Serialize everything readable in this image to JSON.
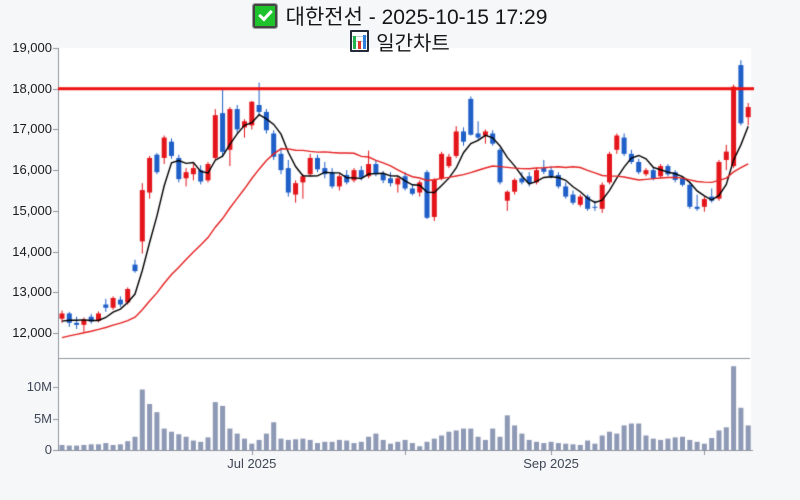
{
  "title": {
    "line1": "대한전선 - 2025-10-15 17:29",
    "line2": "일간차트"
  },
  "icons": {
    "checkbox": "checkbox-checked-icon",
    "subtitle": "bar-chart-icon"
  },
  "colors": {
    "page_background": "#f6f7f9",
    "plot_background": "#ffffff",
    "axis_line": "#8f959c",
    "candle_up": "#e3151b",
    "candle_down": "#1e5fc8",
    "ma_short": "#000000",
    "ma_long": "#e62222",
    "resistance_line": "#ee1111",
    "volume_bar": "#8e99b5",
    "checkbox_green": "#1ec32c"
  },
  "chart_data": {
    "type": "candlestick",
    "panels": [
      "price",
      "volume"
    ],
    "legend_position": "none",
    "grid": false,
    "price_axis": {
      "tick_labels": [
        "19,000",
        "18,000",
        "17,000",
        "16,000",
        "15,000",
        "14,000",
        "13,000",
        "12,000"
      ],
      "tick_values": [
        19000,
        18000,
        17000,
        16000,
        15000,
        14000,
        13000,
        12000
      ],
      "range_shown": [
        11400,
        19000
      ]
    },
    "volume_axis": {
      "tick_labels": [
        "10M",
        "5M",
        "0"
      ],
      "tick_values": [
        10,
        5,
        0
      ],
      "unit": "millions of shares"
    },
    "x_axis": {
      "ticks": [
        {
          "label": "Jul 2025",
          "candle_index": 26
        },
        {
          "label": "",
          "candle_index": 47
        },
        {
          "label": "Sep 2025",
          "candle_index": 67
        },
        {
          "label": "",
          "candle_index": 88
        }
      ]
    },
    "resistance_line_price": 18000,
    "moving_averages": [
      {
        "period": 5,
        "color": "#000000"
      },
      {
        "period": 20,
        "color": "#e62222"
      }
    ],
    "pre_close_seed": [
      11400,
      11450,
      11500,
      11550,
      11600,
      11650,
      11700,
      11750,
      11800,
      11850,
      11900,
      11950,
      12000,
      12050,
      12100,
      12150,
      12200,
      12280,
      12350
    ],
    "candles_ohlc": [
      [
        12350,
        12550,
        12250,
        12480
      ],
      [
        12480,
        12520,
        12150,
        12250
      ],
      [
        12250,
        12400,
        12100,
        12200
      ],
      [
        12200,
        12380,
        12030,
        12330
      ],
      [
        12400,
        12470,
        12230,
        12280
      ],
      [
        12300,
        12530,
        12260,
        12480
      ],
      [
        12700,
        12840,
        12520,
        12620
      ],
      [
        12620,
        12900,
        12570,
        12860
      ],
      [
        12820,
        12900,
        12640,
        12700
      ],
      [
        12750,
        13120,
        12700,
        13080
      ],
      [
        13680,
        13800,
        13480,
        13520
      ],
      [
        14250,
        15680,
        13950,
        15510
      ],
      [
        15450,
        16350,
        15300,
        16300
      ],
      [
        16380,
        16420,
        15900,
        15950
      ],
      [
        16300,
        16850,
        16150,
        16800
      ],
      [
        16700,
        16780,
        16280,
        16350
      ],
      [
        16300,
        16380,
        15700,
        15780
      ],
      [
        15800,
        16050,
        15600,
        15950
      ],
      [
        15900,
        16150,
        15750,
        16050
      ],
      [
        16000,
        16120,
        15650,
        15720
      ],
      [
        15750,
        16200,
        15700,
        16150
      ],
      [
        16300,
        17500,
        16250,
        17350
      ],
      [
        17400,
        17980,
        16350,
        16450
      ],
      [
        16500,
        17550,
        16100,
        17500
      ],
      [
        17500,
        17600,
        16900,
        17000
      ],
      [
        17050,
        17250,
        16800,
        17200
      ],
      [
        17100,
        17700,
        17000,
        17680
      ],
      [
        17600,
        18150,
        17350,
        17430
      ],
      [
        17430,
        17500,
        16900,
        16980
      ],
      [
        16900,
        16980,
        16250,
        16330
      ],
      [
        16400,
        16550,
        15900,
        16000
      ],
      [
        16050,
        16250,
        15350,
        15450
      ],
      [
        15400,
        15750,
        15200,
        15680
      ],
      [
        15700,
        15900,
        15300,
        15850
      ],
      [
        15900,
        16400,
        15850,
        16300
      ],
      [
        16300,
        16380,
        15950,
        16020
      ],
      [
        16050,
        16200,
        15800,
        15900
      ],
      [
        15950,
        16050,
        15550,
        15600
      ],
      [
        15600,
        15900,
        15500,
        15850
      ],
      [
        15880,
        16000,
        15650,
        15700
      ],
      [
        15750,
        16050,
        15700,
        16000
      ],
      [
        16000,
        16100,
        15750,
        15820
      ],
      [
        15850,
        16480,
        15800,
        16150
      ],
      [
        16150,
        16250,
        15850,
        15900
      ],
      [
        15900,
        15980,
        15680,
        15750
      ],
      [
        15800,
        15950,
        15600,
        15680
      ],
      [
        15650,
        15850,
        15450,
        15800
      ],
      [
        15850,
        15950,
        15500,
        15550
      ],
      [
        15550,
        15650,
        15380,
        15420
      ],
      [
        15450,
        15750,
        15350,
        15700
      ],
      [
        15950,
        16000,
        14800,
        14830
      ],
      [
        14850,
        15800,
        14750,
        15760
      ],
      [
        15800,
        16450,
        15750,
        16400
      ],
      [
        16100,
        16400,
        16050,
        16330
      ],
      [
        16350,
        17080,
        16300,
        16950
      ],
      [
        16950,
        17050,
        16600,
        16700
      ],
      [
        17750,
        17810,
        16850,
        16870
      ],
      [
        16900,
        17200,
        16750,
        16800
      ],
      [
        16850,
        17000,
        16650,
        16950
      ],
      [
        16900,
        16980,
        16600,
        16650
      ],
      [
        16500,
        16550,
        15650,
        15700
      ],
      [
        15250,
        15500,
        15000,
        15470
      ],
      [
        15470,
        15800,
        15400,
        15760
      ],
      [
        15800,
        15950,
        15650,
        15700
      ],
      [
        15850,
        15950,
        15600,
        15680
      ],
      [
        15700,
        16060,
        15650,
        16000
      ],
      [
        16050,
        16250,
        15900,
        15960
      ],
      [
        16000,
        16100,
        15800,
        15850
      ],
      [
        15880,
        15950,
        15550,
        15600
      ],
      [
        15600,
        15700,
        15300,
        15350
      ],
      [
        15400,
        15500,
        15150,
        15200
      ],
      [
        15150,
        15400,
        15100,
        15350
      ],
      [
        15350,
        15400,
        15000,
        15050
      ],
      [
        15100,
        15250,
        15000,
        15080
      ],
      [
        15050,
        15700,
        14950,
        15640
      ],
      [
        15700,
        16450,
        15650,
        16400
      ],
      [
        16500,
        16900,
        16400,
        16850
      ],
      [
        16800,
        16900,
        16350,
        16400
      ],
      [
        16400,
        16500,
        16150,
        16200
      ],
      [
        16200,
        16280,
        15900,
        15950
      ],
      [
        15900,
        16050,
        15850,
        16000
      ],
      [
        16000,
        16080,
        15750,
        15800
      ],
      [
        15850,
        16150,
        15800,
        16100
      ],
      [
        16100,
        16150,
        15850,
        15900
      ],
      [
        15950,
        16000,
        15700,
        15760
      ],
      [
        15800,
        15850,
        15600,
        15640
      ],
      [
        15640,
        15700,
        15050,
        15100
      ],
      [
        15100,
        15400,
        15000,
        15050
      ],
      [
        15100,
        15350,
        14980,
        15290
      ],
      [
        15350,
        15550,
        15200,
        15250
      ],
      [
        15300,
        16250,
        15250,
        16200
      ],
      [
        16250,
        16620,
        16000,
        16455
      ],
      [
        16100,
        18100,
        16050,
        18050
      ],
      [
        18580,
        18700,
        17100,
        17150
      ],
      [
        17300,
        17650,
        17100,
        17550
      ]
    ],
    "volumes_millions": [
      0.8,
      0.7,
      0.7,
      0.8,
      0.9,
      0.9,
      1.1,
      0.8,
      0.9,
      1.4,
      2.1,
      9.6,
      7.3,
      6.0,
      3.4,
      2.9,
      2.5,
      2.1,
      1.5,
      1.3,
      2.0,
      7.6,
      7.0,
      3.4,
      2.6,
      1.8,
      1.0,
      1.6,
      2.6,
      4.4,
      1.8,
      1.6,
      1.7,
      1.8,
      1.6,
      1.1,
      1.3,
      1.3,
      1.6,
      1.5,
      1.1,
      1.3,
      2.1,
      2.6,
      1.6,
      1.0,
      1.3,
      1.6,
      1.1,
      0.6,
      1.3,
      1.8,
      2.3,
      2.9,
      3.1,
      3.4,
      3.4,
      2.1,
      1.6,
      3.4,
      2.1,
      5.5,
      3.9,
      2.6,
      1.6,
      1.3,
      1.1,
      1.3,
      1.1,
      1.0,
      0.9,
      0.8,
      1.5,
      1.0,
      2.3,
      2.9,
      2.6,
      3.9,
      4.2,
      4.2,
      2.3,
      1.8,
      1.6,
      1.8,
      2.0,
      2.1,
      1.6,
      1.3,
      1.0,
      1.9,
      3.1,
      3.6,
      13.3,
      6.7,
      3.9
    ]
  }
}
